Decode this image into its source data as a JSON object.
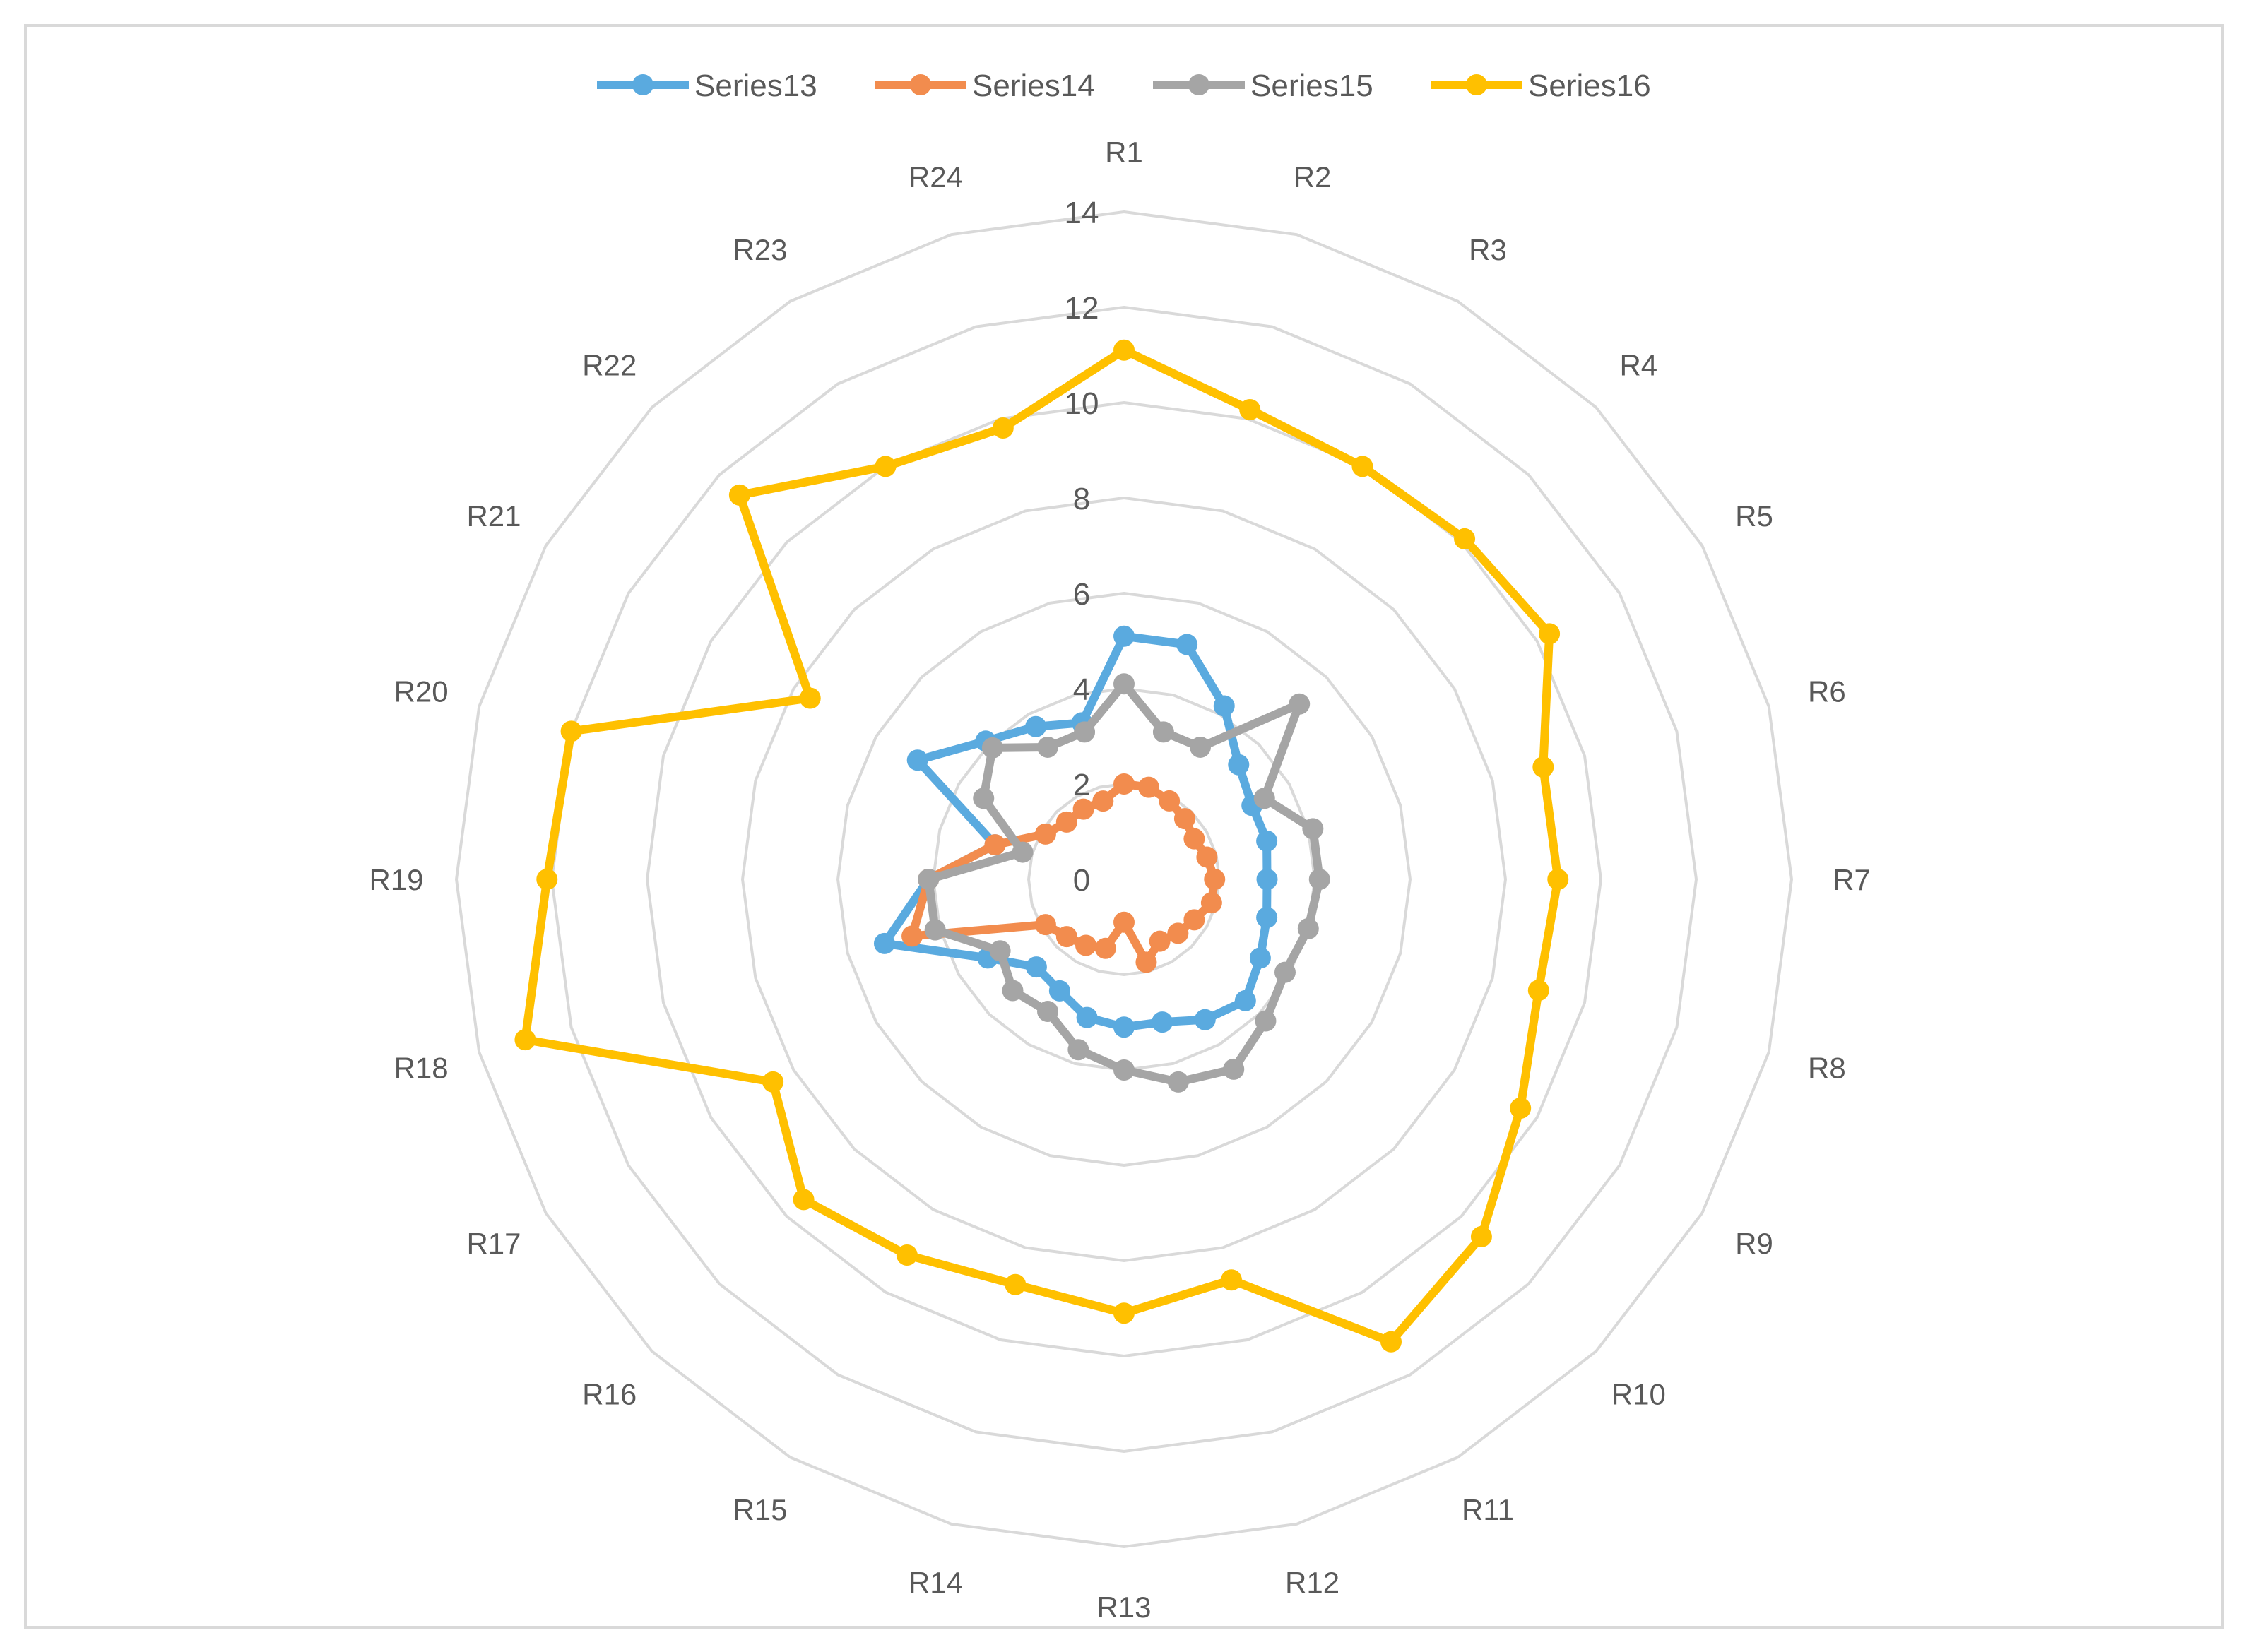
{
  "chart_data": {
    "type": "radar",
    "categories": [
      "R1",
      "R2",
      "R3",
      "R4",
      "R5",
      "R6",
      "R7",
      "R8",
      "R9",
      "R10",
      "R11",
      "R12",
      "R13",
      "R14",
      "R15",
      "R16",
      "R17",
      "R18",
      "R19",
      "R20",
      "R21",
      "R22",
      "R23",
      "R24"
    ],
    "rlim": [
      0,
      14
    ],
    "ticks": [
      "0",
      "2",
      "4",
      "6",
      "8",
      "10",
      "12",
      "14"
    ],
    "grid": true,
    "legend_position": "top",
    "series": [
      {
        "name": "Series13",
        "color": "#5aaadf",
        "values": [
          5.1,
          5.1,
          4.2,
          3.4,
          3.1,
          3.1,
          3.0,
          3.1,
          3.3,
          3.6,
          3.4,
          3.1,
          3.1,
          3.0,
          2.7,
          2.6,
          3.3,
          5.2,
          4.1,
          2.8,
          5.0,
          4.1,
          3.7,
          3.4
        ]
      },
      {
        "name": "Series14",
        "color": "#f28c4e",
        "values": [
          2.0,
          2.0,
          1.9,
          1.8,
          1.7,
          1.8,
          1.9,
          1.9,
          1.7,
          1.6,
          1.5,
          1.8,
          0.9,
          1.5,
          1.6,
          1.7,
          1.9,
          4.6,
          4.1,
          2.8,
          1.9,
          1.7,
          1.7,
          1.7
        ]
      },
      {
        "name": "Series15",
        "color": "#a5a5a5",
        "values": [
          4.1,
          3.2,
          3.2,
          5.2,
          3.4,
          4.1,
          4.1,
          4.0,
          3.9,
          4.2,
          4.6,
          4.4,
          4.0,
          3.7,
          3.2,
          3.3,
          3.0,
          4.1,
          4.1,
          2.2,
          3.4,
          3.9,
          3.2,
          3.2
        ]
      },
      {
        "name": "Series16",
        "color": "#ffc000",
        "values": [
          11.1,
          10.2,
          10.0,
          10.1,
          10.3,
          9.1,
          9.1,
          9.0,
          9.6,
          10.6,
          11.2,
          8.7,
          9.1,
          8.8,
          9.1,
          9.5,
          8.5,
          13.0,
          12.1,
          12.0,
          7.6,
          11.4,
          10.0,
          9.8
        ]
      }
    ]
  }
}
